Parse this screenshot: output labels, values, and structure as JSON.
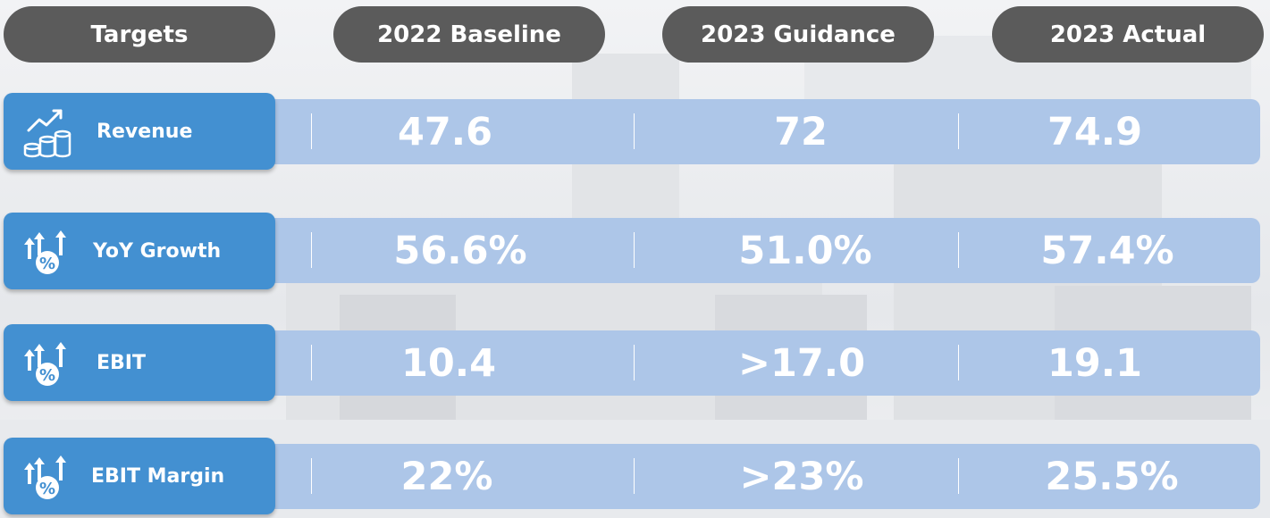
{
  "header": {
    "col0": "Targets",
    "col1": "2022 Baseline",
    "col2": "2023 Guidance",
    "col3": "2023 Actual"
  },
  "rows": [
    {
      "label": "Revenue",
      "icon": "revenue-growth-coins-icon",
      "baseline": "47.6",
      "guidance": "72",
      "actual": "74.9"
    },
    {
      "label": "YoY Growth",
      "icon": "percent-arrows-up-icon",
      "baseline": "56.6%",
      "guidance": "51.0%",
      "actual": "57.4%"
    },
    {
      "label": "EBIT",
      "icon": "percent-arrows-up-icon",
      "baseline": "10.4",
      "guidance": ">17.0",
      "actual": "19.1"
    },
    {
      "label": "EBIT Margin",
      "icon": "percent-arrows-up-icon",
      "baseline": "22%",
      "guidance": ">23%",
      "actual": "25.5%"
    }
  ],
  "colors": {
    "header_bg": "#5b5b5b",
    "label_bg": "#4390d1",
    "band_bg": "#adc6e8",
    "text": "#ffffff"
  }
}
